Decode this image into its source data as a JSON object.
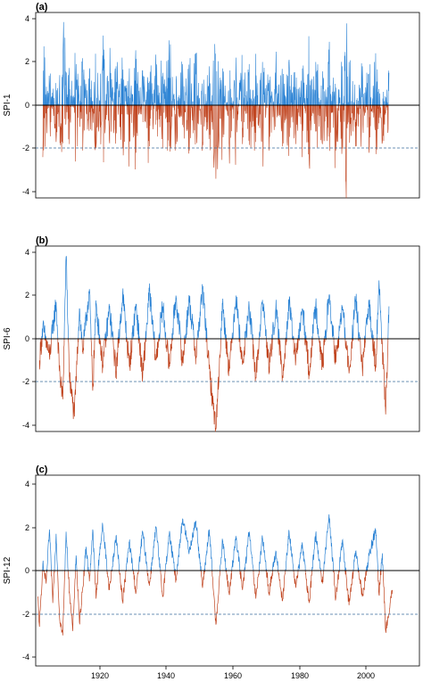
{
  "colors": {
    "positive": "#2a82d4",
    "negative": "#c0441f",
    "threshold": "#3b6f9c"
  },
  "chart_data": [
    {
      "type": "line",
      "panel_label": "(a)",
      "ylabel": "SPI-1",
      "x_range": [
        1906,
        2013
      ],
      "ylim": [
        -4.3,
        4.3
      ],
      "yticks": [
        -4,
        -2,
        0,
        2,
        4
      ],
      "xticks": [],
      "threshold": -2,
      "resolution": "monthly",
      "series": [
        {
          "x": [
            1908.0,
            1910.0,
            1912.0,
            1914.2,
            1916.0,
            1918.0,
            1920.0,
            1922.0,
            1924.0,
            1926.0,
            1928.0,
            1930.0,
            1932.0,
            1934.0,
            1936.0,
            1938.0,
            1940.0,
            1942.0,
            1944.0,
            1946.0,
            1948.0,
            1950.0,
            1952.0,
            1954.0,
            1956.0,
            1958.0,
            1960.0,
            1962.0,
            1964.0,
            1966.0,
            1968.0,
            1970.0,
            1972.0,
            1974.0,
            1976.0,
            1978.0,
            1980.0,
            1982.0,
            1984.0,
            1986.0,
            1988.0,
            1990.0,
            1992.0,
            1994.0,
            1996.0,
            1998.0,
            1999.2,
            2000.0,
            2002.0,
            2004.0,
            2006.0,
            2008.0,
            2010.0,
            2012.0
          ],
          "y": [
            -2.4,
            1.1,
            -1.7,
            3.1,
            -1.8,
            1.9,
            -2.1,
            1.6,
            -1.9,
            2.3,
            -1.6,
            1.8,
            -2.0,
            1.7,
            -2.2,
            1.6,
            -1.9,
            1.8,
            -2.0,
            3.0,
            -1.8,
            1.9,
            -2.1,
            2.4,
            -1.7,
            1.8,
            -3.4,
            1.7,
            -1.9,
            2.2,
            -1.8,
            1.9,
            -1.7,
            2.0,
            -2.1,
            1.6,
            -1.9,
            2.1,
            -1.8,
            1.7,
            -2.3,
            2.0,
            -1.8,
            1.9,
            -2.1,
            1.8,
            -4.3,
            2.0,
            -1.9,
            1.8,
            -2.2,
            2.4,
            -1.7,
            1.5
          ]
        }
      ]
    },
    {
      "type": "line",
      "panel_label": "(b)",
      "ylabel": "SPI-6",
      "x_range": [
        1906,
        2013
      ],
      "ylim": [
        -4.3,
        4.3
      ],
      "yticks": [
        -4,
        -2,
        0,
        2,
        4
      ],
      "xticks": [],
      "threshold": -2,
      "resolution": "monthly",
      "series": [
        {
          "x": [
            1907.0,
            1908.0,
            1910.0,
            1912.0,
            1913.0,
            1914.0,
            1915.0,
            1916.0,
            1917.5,
            1919.0,
            1920.0,
            1922.0,
            1923.0,
            1924.0,
            1926.0,
            1928.0,
            1930.0,
            1932.0,
            1934.0,
            1936.0,
            1938.0,
            1940.0,
            1942.0,
            1944.0,
            1946.0,
            1948.0,
            1950.0,
            1952.0,
            1954.0,
            1956.0,
            1958.0,
            1960.0,
            1962.0,
            1964.0,
            1966.0,
            1968.0,
            1970.0,
            1972.0,
            1974.0,
            1976.0,
            1978.0,
            1980.0,
            1982.0,
            1984.0,
            1986.0,
            1988.0,
            1990.0,
            1992.0,
            1994.0,
            1996.0,
            1998.0,
            2000.0,
            2002.0,
            2004.0,
            2006.0,
            2008.0,
            2009.0,
            2011.0,
            2012.0
          ],
          "y": [
            -1.0,
            0.5,
            -0.8,
            1.7,
            -1.5,
            -2.8,
            3.8,
            -1.8,
            -3.6,
            1.4,
            -0.6,
            2.3,
            -2.4,
            1.6,
            -1.2,
            1.4,
            -1.5,
            2.1,
            -1.3,
            1.6,
            -1.8,
            2.2,
            -1.0,
            1.5,
            -1.3,
            2.0,
            -1.1,
            1.8,
            -0.8,
            2.3,
            -1.4,
            -4.2,
            1.6,
            -1.5,
            2.0,
            -1.2,
            1.5,
            -1.8,
            1.8,
            -1.3,
            1.4,
            -1.7,
            1.6,
            -1.0,
            1.4,
            -1.5,
            1.6,
            -1.3,
            2.0,
            -1.1,
            1.5,
            -1.6,
            1.8,
            -1.4,
            1.6,
            -1.2,
            2.7,
            -3.5,
            1.5
          ]
        }
      ]
    },
    {
      "type": "line",
      "panel_label": "(c)",
      "ylabel": "SPI-12",
      "x_range": [
        1906,
        2013
      ],
      "ylim": [
        -4.3,
        4.3
      ],
      "yticks": [
        -4,
        -2,
        0,
        2,
        4
      ],
      "xticks": [
        1920,
        1940,
        1960,
        1980,
        2000
      ],
      "threshold": -2,
      "resolution": "monthly",
      "series": [
        {
          "x": [
            1906.5,
            1907.0,
            1908.0,
            1909.0,
            1910.0,
            1911.0,
            1912.0,
            1913.0,
            1914.0,
            1915.0,
            1916.0,
            1917.0,
            1918.0,
            1919.0,
            1920.0,
            1921.0,
            1922.0,
            1923.0,
            1924.0,
            1925.0,
            1926.0,
            1928.0,
            1930.0,
            1932.0,
            1934.0,
            1936.0,
            1938.0,
            1940.0,
            1942.0,
            1944.0,
            1946.0,
            1948.0,
            1950.0,
            1952.0,
            1954.0,
            1956.0,
            1958.0,
            1960.0,
            1962.0,
            1964.0,
            1966.0,
            1968.0,
            1970.0,
            1972.0,
            1974.0,
            1976.0,
            1978.0,
            1980.0,
            1982.0,
            1984.0,
            1986.0,
            1988.0,
            1990.0,
            1992.0,
            1994.0,
            1996.0,
            1998.0,
            2000.0,
            2002.0,
            2004.0,
            2006.0,
            2008.0,
            2009.0,
            2010.0,
            2011.0,
            2012.0,
            2013.0
          ],
          "y": [
            -1.2,
            -2.6,
            0.3,
            -0.6,
            1.9,
            -1.5,
            1.7,
            -2.1,
            -3.0,
            1.8,
            -1.0,
            -2.8,
            0.7,
            -2.4,
            -0.8,
            1.1,
            -0.5,
            1.9,
            -1.3,
            0.8,
            2.1,
            -0.9,
            1.6,
            -1.4,
            1.3,
            -1.0,
            1.8,
            -0.7,
            2.0,
            -1.2,
            1.7,
            -0.4,
            2.4,
            0.9,
            2.3,
            -0.8,
            1.9,
            -2.5,
            1.4,
            -1.1,
            1.6,
            -0.9,
            1.8,
            -1.3,
            1.5,
            -1.0,
            0.9,
            -1.4,
            1.8,
            -0.8,
            1.2,
            -1.5,
            1.7,
            -0.6,
            2.6,
            -1.3,
            1.4,
            -1.6,
            0.9,
            -1.2,
            0.7,
            1.9,
            -1.1,
            0.8,
            -2.8,
            -2.0,
            -0.9
          ]
        }
      ]
    }
  ]
}
